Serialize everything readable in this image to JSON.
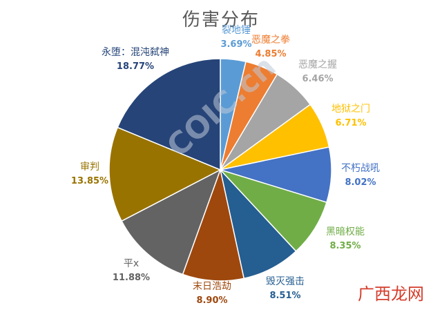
{
  "chart_data": {
    "type": "pie",
    "title": "伤害分布",
    "slices": [
      {
        "label": "裂地锤",
        "percent_label": "3.69%",
        "value": 3.69,
        "color": "#5b9bd5",
        "label_color": "#5b9bd5"
      },
      {
        "label": "恶魔之拳",
        "percent_label": "4.85%",
        "value": 4.85,
        "color": "#ed7d31",
        "label_color": "#ed7d31"
      },
      {
        "label": "恶魔之握",
        "percent_label": "6.46%",
        "value": 6.46,
        "color": "#a5a5a5",
        "label_color": "#a5a5a5"
      },
      {
        "label": "地狱之门",
        "percent_label": "6.71%",
        "value": 6.71,
        "color": "#ffc000",
        "label_color": "#ffc000"
      },
      {
        "label": "不朽战吼",
        "percent_label": "8.02%",
        "value": 8.02,
        "color": "#4472c4",
        "label_color": "#4472c4"
      },
      {
        "label": "黑暗权能",
        "percent_label": "8.35%",
        "value": 8.35,
        "color": "#70ad47",
        "label_color": "#70ad47"
      },
      {
        "label": "毁灭强击",
        "percent_label": "8.51%",
        "value": 8.51,
        "color": "#255e91",
        "label_color": "#255e91"
      },
      {
        "label": "末日浩劫",
        "percent_label": "8.90%",
        "value": 8.9,
        "color": "#9e480e",
        "label_color": "#9e480e"
      },
      {
        "label": "平x",
        "percent_label": "11.88%",
        "value": 11.88,
        "color": "#636363",
        "label_color": "#636363"
      },
      {
        "label": "审判",
        "percent_label": "13.85%",
        "value": 13.85,
        "color": "#997300",
        "label_color": "#997300"
      },
      {
        "label": "永堕：混沌弑神",
        "percent_label": "18.77%",
        "value": 18.77,
        "color": "#264478",
        "label_color": "#264478"
      }
    ]
  },
  "watermark": "COIC.cn",
  "site_mark": "广西龙网"
}
